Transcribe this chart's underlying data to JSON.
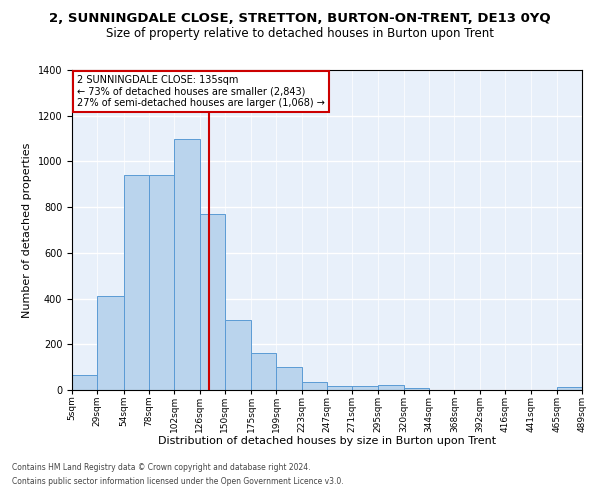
{
  "title": "2, SUNNINGDALE CLOSE, STRETTON, BURTON-ON-TRENT, DE13 0YQ",
  "subtitle": "Size of property relative to detached houses in Burton upon Trent",
  "xlabel": "Distribution of detached houses by size in Burton upon Trent",
  "ylabel": "Number of detached properties",
  "footer1": "Contains HM Land Registry data © Crown copyright and database right 2024.",
  "footer2": "Contains public sector information licensed under the Open Government Licence v3.0.",
  "annotation_line1": "2 SUNNINGDALE CLOSE: 135sqm",
  "annotation_line2": "← 73% of detached houses are smaller (2,843)",
  "annotation_line3": "27% of semi-detached houses are larger (1,068) →",
  "property_size": 135,
  "bar_color": "#bad4ed",
  "bar_edge_color": "#5b9bd5",
  "vline_color": "#cc0000",
  "background_color": "#e8f0fa",
  "bins": [
    5,
    29,
    54,
    78,
    102,
    126,
    150,
    175,
    199,
    223,
    247,
    271,
    295,
    320,
    344,
    368,
    392,
    416,
    441,
    465,
    489
  ],
  "counts": [
    65,
    410,
    940,
    940,
    1100,
    770,
    305,
    160,
    100,
    35,
    18,
    18,
    20,
    10,
    0,
    0,
    0,
    0,
    0,
    12
  ],
  "ylim": [
    0,
    1400
  ],
  "yticks": [
    0,
    200,
    400,
    600,
    800,
    1000,
    1200,
    1400
  ],
  "annotation_box_edgecolor": "#cc0000",
  "title_fontsize": 9.5,
  "subtitle_fontsize": 8.5,
  "xlabel_fontsize": 8,
  "ylabel_fontsize": 8,
  "tick_fontsize": 6.5,
  "footer_fontsize": 5.5,
  "ann_fontsize": 7
}
